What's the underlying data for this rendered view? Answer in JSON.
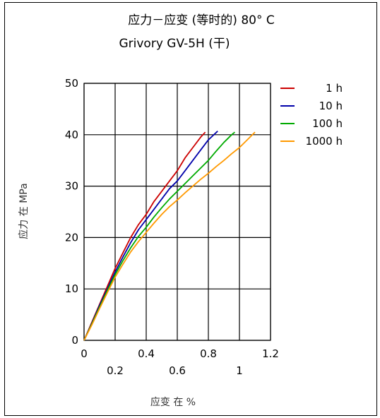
{
  "chart_data": {
    "type": "line",
    "title": "应力－应变 (等时的) 80°  C",
    "subtitle": "Grivory GV-5H (干)",
    "xlabel": "应变 在 %",
    "ylabel": "应力 在  MPa",
    "xlim": [
      0,
      1.2
    ],
    "ylim": [
      0,
      50
    ],
    "x_ticks_upper": [
      "0",
      "0.4",
      "0.8",
      "1.2"
    ],
    "x_tick_values_upper": [
      0,
      0.4,
      0.8,
      1.2
    ],
    "x_ticks_lower": [
      "0.2",
      "0.6",
      "1"
    ],
    "x_tick_values_lower": [
      0.2,
      0.6,
      1.0
    ],
    "y_ticks": [
      "0",
      "10",
      "20",
      "30",
      "40",
      "50"
    ],
    "y_tick_values": [
      0,
      10,
      20,
      30,
      40,
      50
    ],
    "grid": true,
    "legend_position": "right",
    "series": [
      {
        "name": "1 h",
        "color": "#cc0000",
        "points": [
          [
            0,
            0
          ],
          [
            0.05,
            3.5
          ],
          [
            0.1,
            7
          ],
          [
            0.15,
            10.5
          ],
          [
            0.2,
            14
          ],
          [
            0.25,
            17
          ],
          [
            0.3,
            20
          ],
          [
            0.35,
            22.5
          ],
          [
            0.4,
            24.5
          ],
          [
            0.45,
            27
          ],
          [
            0.5,
            29
          ],
          [
            0.55,
            31
          ],
          [
            0.6,
            33
          ],
          [
            0.65,
            35.5
          ],
          [
            0.7,
            37.5
          ],
          [
            0.75,
            39.5
          ],
          [
            0.78,
            40.5
          ]
        ]
      },
      {
        "name": "10 h",
        "color": "#0000aa",
        "points": [
          [
            0,
            0
          ],
          [
            0.05,
            3.3
          ],
          [
            0.1,
            6.8
          ],
          [
            0.15,
            10
          ],
          [
            0.2,
            13.3
          ],
          [
            0.25,
            16.2
          ],
          [
            0.3,
            19
          ],
          [
            0.35,
            21.5
          ],
          [
            0.4,
            23.5
          ],
          [
            0.45,
            25.5
          ],
          [
            0.5,
            27.5
          ],
          [
            0.55,
            29.5
          ],
          [
            0.6,
            31
          ],
          [
            0.65,
            33
          ],
          [
            0.7,
            35
          ],
          [
            0.75,
            37
          ],
          [
            0.8,
            39
          ],
          [
            0.86,
            40.7
          ]
        ]
      },
      {
        "name": "100 h",
        "color": "#00aa00",
        "points": [
          [
            0,
            0
          ],
          [
            0.05,
            3.2
          ],
          [
            0.1,
            6.5
          ],
          [
            0.15,
            9.7
          ],
          [
            0.2,
            12.8
          ],
          [
            0.25,
            15.5
          ],
          [
            0.3,
            18
          ],
          [
            0.35,
            20.2
          ],
          [
            0.4,
            22
          ],
          [
            0.45,
            24
          ],
          [
            0.5,
            25.8
          ],
          [
            0.55,
            27.5
          ],
          [
            0.6,
            29
          ],
          [
            0.65,
            30.5
          ],
          [
            0.7,
            32
          ],
          [
            0.75,
            33.5
          ],
          [
            0.8,
            35
          ],
          [
            0.85,
            36.8
          ],
          [
            0.9,
            38.5
          ],
          [
            0.95,
            40
          ],
          [
            0.97,
            40.5
          ]
        ]
      },
      {
        "name": "1000 h",
        "color": "#ff9900",
        "points": [
          [
            0,
            0
          ],
          [
            0.05,
            3
          ],
          [
            0.1,
            6.2
          ],
          [
            0.15,
            9.3
          ],
          [
            0.2,
            12.3
          ],
          [
            0.25,
            14.8
          ],
          [
            0.3,
            17.2
          ],
          [
            0.35,
            19.2
          ],
          [
            0.4,
            21
          ],
          [
            0.45,
            22.8
          ],
          [
            0.5,
            24.5
          ],
          [
            0.55,
            26
          ],
          [
            0.6,
            27.3
          ],
          [
            0.65,
            28.7
          ],
          [
            0.7,
            30
          ],
          [
            0.75,
            31.3
          ],
          [
            0.8,
            32.5
          ],
          [
            0.85,
            33.8
          ],
          [
            0.9,
            35
          ],
          [
            0.95,
            36.3
          ],
          [
            1.0,
            37.5
          ],
          [
            1.05,
            39
          ],
          [
            1.1,
            40.5
          ]
        ]
      }
    ]
  }
}
